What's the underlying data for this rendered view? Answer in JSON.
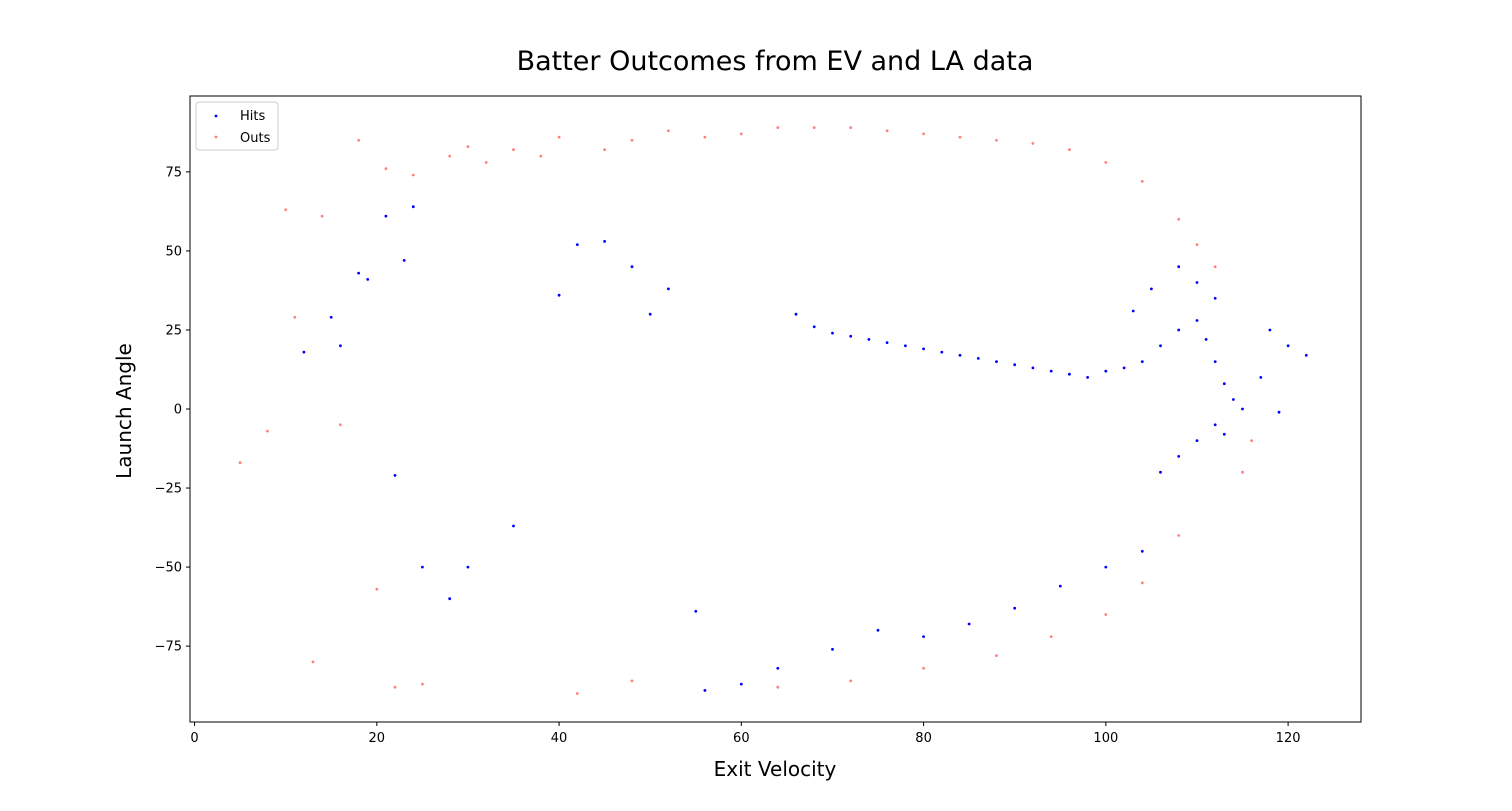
{
  "chart_data": {
    "type": "scatter",
    "title": "Batter Outcomes from EV and LA data",
    "xlabel": "Exit Velocity",
    "ylabel": "Launch Angle",
    "xlim": [
      -0.5,
      128
    ],
    "ylim": [
      -99,
      99
    ],
    "x_ticks": [
      0,
      20,
      40,
      60,
      80,
      100,
      120
    ],
    "y_ticks": [
      -75,
      -50,
      -25,
      0,
      25,
      50,
      75
    ],
    "x_tick_labels": [
      "0",
      "20",
      "40",
      "60",
      "80",
      "100",
      "120"
    ],
    "y_tick_labels": [
      "−75",
      "−50",
      "−25",
      "0",
      "25",
      "50",
      "75"
    ],
    "legend": {
      "placement": "top-left"
    },
    "grid": false,
    "series": [
      {
        "name": "Hits",
        "color": "#0000ff",
        "alpha": 1.0,
        "marker": "point",
        "points": [
          [
            15,
            29
          ],
          [
            16,
            20
          ],
          [
            18,
            43
          ],
          [
            19,
            41
          ],
          [
            21,
            61
          ],
          [
            24,
            64
          ],
          [
            23,
            47
          ],
          [
            12,
            18
          ],
          [
            22,
            -21
          ],
          [
            25,
            -50
          ],
          [
            28,
            -60
          ],
          [
            30,
            -50
          ],
          [
            35,
            -37
          ],
          [
            40,
            36
          ],
          [
            42,
            52
          ],
          [
            45,
            53
          ],
          [
            48,
            45
          ],
          [
            50,
            30
          ],
          [
            52,
            38
          ],
          [
            55,
            -64
          ],
          [
            56,
            -89
          ],
          [
            60,
            -87
          ],
          [
            64,
            -82
          ],
          [
            70,
            -76
          ],
          [
            75,
            -70
          ],
          [
            80,
            -72
          ],
          [
            85,
            -68
          ],
          [
            90,
            -63
          ],
          [
            95,
            -56
          ],
          [
            100,
            -50
          ],
          [
            104,
            -45
          ],
          [
            66,
            30
          ],
          [
            68,
            26
          ],
          [
            70,
            24
          ],
          [
            72,
            23
          ],
          [
            74,
            22
          ],
          [
            76,
            21
          ],
          [
            78,
            20
          ],
          [
            80,
            19
          ],
          [
            82,
            18
          ],
          [
            84,
            17
          ],
          [
            86,
            16
          ],
          [
            88,
            15
          ],
          [
            90,
            14
          ],
          [
            92,
            13
          ],
          [
            94,
            12
          ],
          [
            96,
            11
          ],
          [
            98,
            10
          ],
          [
            100,
            12
          ],
          [
            102,
            13
          ],
          [
            104,
            15
          ],
          [
            106,
            20
          ],
          [
            108,
            25
          ],
          [
            110,
            28
          ],
          [
            111,
            22
          ],
          [
            112,
            15
          ],
          [
            113,
            8
          ],
          [
            114,
            3
          ],
          [
            115,
            0
          ],
          [
            117,
            10
          ],
          [
            118,
            25
          ],
          [
            119,
            -1
          ],
          [
            120,
            20
          ],
          [
            122,
            17
          ],
          [
            112,
            35
          ],
          [
            110,
            40
          ],
          [
            108,
            45
          ],
          [
            105,
            38
          ],
          [
            103,
            31
          ],
          [
            112,
            -5
          ],
          [
            110,
            -10
          ],
          [
            108,
            -15
          ],
          [
            106,
            -20
          ],
          [
            113,
            -8
          ]
        ]
      },
      {
        "name": "Outs",
        "color": "#ff0000",
        "alpha": 0.5,
        "marker": "point",
        "points": [
          [
            5,
            -17
          ],
          [
            8,
            -7
          ],
          [
            10,
            63
          ],
          [
            11,
            29
          ],
          [
            13,
            -80
          ],
          [
            14,
            61
          ],
          [
            16,
            -5
          ],
          [
            18,
            85
          ],
          [
            20,
            -57
          ],
          [
            21,
            76
          ],
          [
            22,
            -88
          ],
          [
            24,
            74
          ],
          [
            25,
            -87
          ],
          [
            28,
            80
          ],
          [
            30,
            83
          ],
          [
            32,
            78
          ],
          [
            35,
            82
          ],
          [
            38,
            80
          ],
          [
            40,
            86
          ],
          [
            42,
            -90
          ],
          [
            45,
            82
          ],
          [
            48,
            85
          ],
          [
            52,
            88
          ],
          [
            56,
            86
          ],
          [
            60,
            87
          ],
          [
            64,
            89
          ],
          [
            68,
            89
          ],
          [
            72,
            89
          ],
          [
            76,
            88
          ],
          [
            80,
            87
          ],
          [
            84,
            86
          ],
          [
            88,
            85
          ],
          [
            92,
            84
          ],
          [
            96,
            82
          ],
          [
            100,
            78
          ],
          [
            104,
            72
          ],
          [
            108,
            60
          ],
          [
            110,
            52
          ],
          [
            112,
            45
          ],
          [
            115,
            -20
          ],
          [
            116,
            -10
          ],
          [
            108,
            -40
          ],
          [
            104,
            -55
          ],
          [
            100,
            -65
          ],
          [
            94,
            -72
          ],
          [
            88,
            -78
          ],
          [
            80,
            -82
          ],
          [
            72,
            -86
          ],
          [
            64,
            -88
          ],
          [
            56,
            -89
          ],
          [
            48,
            -86
          ]
        ]
      }
    ]
  }
}
